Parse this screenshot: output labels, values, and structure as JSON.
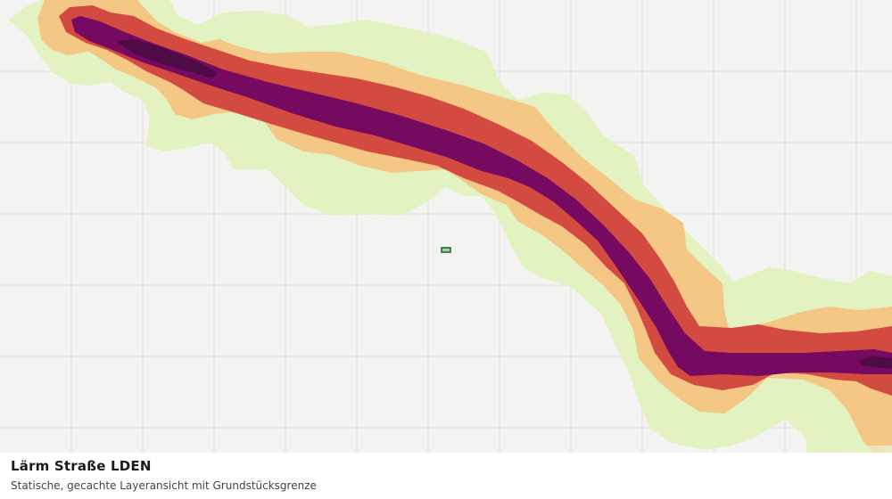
{
  "layer": {
    "title": "Lärm Straße LDEN",
    "subtitle": "Statische, gecachte Layeransicht mit Grundstücksgrenze"
  },
  "colors": {
    "background": "#f3f4f2",
    "grid": "#dcdedb",
    "band_low": "#e3f2c1",
    "band_mid": "#f5c785",
    "band_high": "#d24a40",
    "band_very_high": "#760a60",
    "band_peak": "#4f0b45",
    "parcel_fill": "#9fd29c",
    "parcel_stroke": "#1f5a37"
  },
  "legend_bands": [
    "band_low",
    "band_mid",
    "band_high",
    "band_very_high",
    "band_peak"
  ],
  "icons": {
    "parcel": "parcel-boundary-icon"
  }
}
